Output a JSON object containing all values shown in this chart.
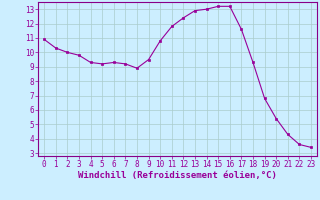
{
  "x": [
    0,
    1,
    2,
    3,
    4,
    5,
    6,
    7,
    8,
    9,
    10,
    11,
    12,
    13,
    14,
    15,
    16,
    17,
    18,
    19,
    20,
    21,
    22,
    23
  ],
  "y": [
    10.9,
    10.3,
    10.0,
    9.8,
    9.3,
    9.2,
    9.3,
    9.2,
    8.9,
    9.5,
    10.8,
    11.8,
    12.4,
    12.9,
    13.0,
    13.2,
    13.2,
    11.6,
    9.3,
    6.8,
    5.4,
    4.3,
    3.6,
    3.4
  ],
  "line_color": "#990099",
  "marker": "s",
  "marker_size": 2,
  "bg_color": "#cceeff",
  "grid_color": "#aacccc",
  "xlabel": "Windchill (Refroidissement éolien,°C)",
  "ylim": [
    2.8,
    13.5
  ],
  "yticks": [
    3,
    4,
    5,
    6,
    7,
    8,
    9,
    10,
    11,
    12,
    13
  ],
  "xticks": [
    0,
    1,
    2,
    3,
    4,
    5,
    6,
    7,
    8,
    9,
    10,
    11,
    12,
    13,
    14,
    15,
    16,
    17,
    18,
    19,
    20,
    21,
    22,
    23
  ],
  "tick_label_size": 5.5,
  "xlabel_size": 6.5,
  "axis_color": "#880088"
}
